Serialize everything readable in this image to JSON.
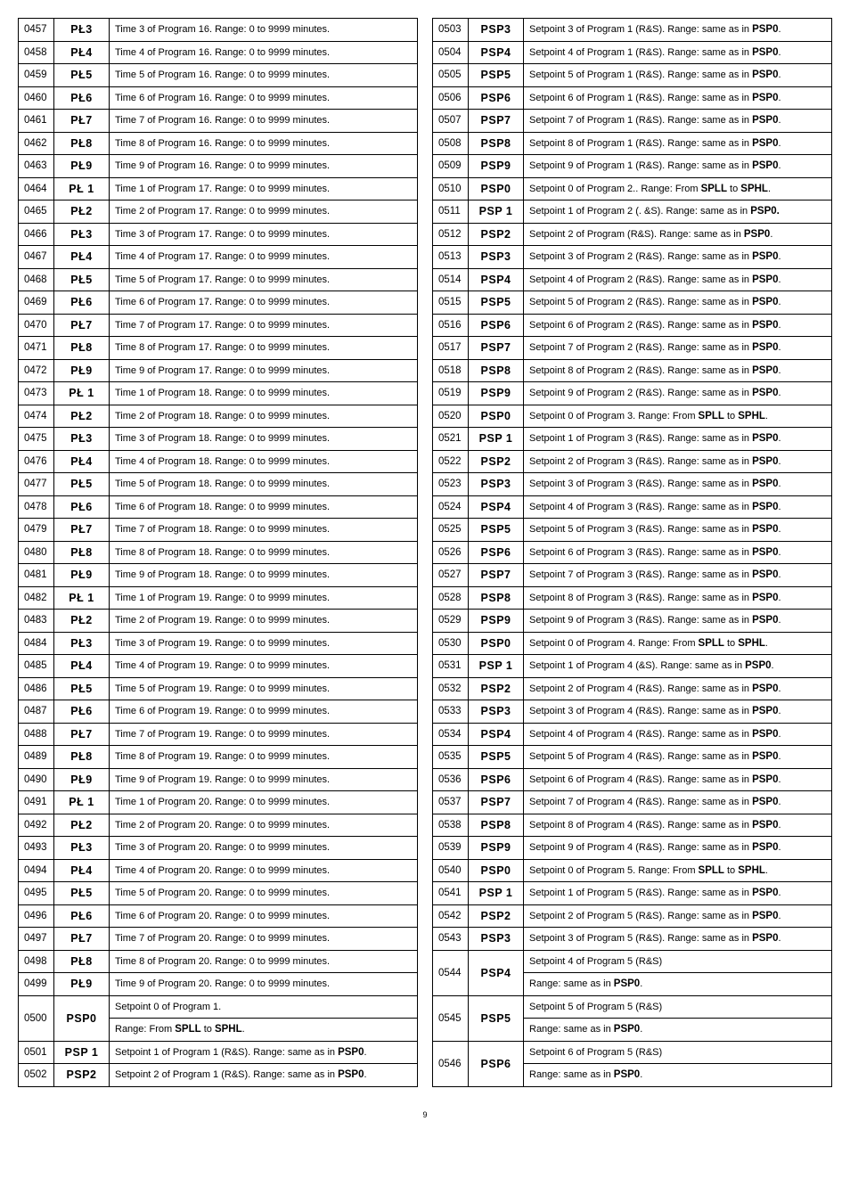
{
  "left": [
    {
      "idx": "0457",
      "code": "PŁ3",
      "desc": "Time 3 of Program 16. Range: 0 to 9999 minutes."
    },
    {
      "idx": "0458",
      "code": "PŁ4",
      "desc": "Time 4 of Program 16. Range: 0 to 9999 minutes."
    },
    {
      "idx": "0459",
      "code": "PŁ5",
      "desc": "Time 5 of Program 16. Range: 0 to 9999 minutes."
    },
    {
      "idx": "0460",
      "code": "PŁ6",
      "desc": "Time 6 of Program 16. Range: 0 to 9999 minutes."
    },
    {
      "idx": "0461",
      "code": "PŁ7",
      "desc": "Time 7 of Program 16. Range: 0 to 9999 minutes."
    },
    {
      "idx": "0462",
      "code": "PŁ8",
      "desc": "Time 8 of Program 16. Range: 0 to 9999 minutes."
    },
    {
      "idx": "0463",
      "code": "PŁ9",
      "desc": "Time 9 of Program 16. Range: 0 to 9999 minutes."
    },
    {
      "idx": "0464",
      "code": "PŁ 1",
      "desc": "Time 1 of Program 17. Range: 0 to 9999 minutes."
    },
    {
      "idx": "0465",
      "code": "PŁ2",
      "desc": "Time 2 of Program 17. Range: 0 to 9999 minutes."
    },
    {
      "idx": "0466",
      "code": "PŁ3",
      "desc": "Time 3 of Program 17. Range: 0 to 9999 minutes."
    },
    {
      "idx": "0467",
      "code": "PŁ4",
      "desc": "Time 4 of Program 17. Range: 0 to 9999 minutes."
    },
    {
      "idx": "0468",
      "code": "PŁ5",
      "desc": "Time 5 of Program 17. Range: 0 to 9999 minutes."
    },
    {
      "idx": "0469",
      "code": "PŁ6",
      "desc": "Time 6 of Program 17. Range: 0 to 9999 minutes."
    },
    {
      "idx": "0470",
      "code": "PŁ7",
      "desc": "Time 7 of Program 17. Range: 0 to 9999 minutes."
    },
    {
      "idx": "0471",
      "code": "PŁ8",
      "desc": "Time 8 of Program 17. Range: 0 to 9999 minutes."
    },
    {
      "idx": "0472",
      "code": "PŁ9",
      "desc": "Time 9 of Program 17. Range: 0 to 9999 minutes."
    },
    {
      "idx": "0473",
      "code": "PŁ 1",
      "desc": "Time 1 of Program 18. Range: 0 to 9999 minutes."
    },
    {
      "idx": "0474",
      "code": "PŁ2",
      "desc": "Time 2 of Program 18. Range: 0 to 9999 minutes."
    },
    {
      "idx": "0475",
      "code": "PŁ3",
      "desc": "Time 3 of Program 18. Range: 0 to 9999 minutes."
    },
    {
      "idx": "0476",
      "code": "PŁ4",
      "desc": "Time 4 of Program 18. Range: 0 to 9999 minutes."
    },
    {
      "idx": "0477",
      "code": "PŁ5",
      "desc": "Time 5 of Program 18. Range: 0 to 9999 minutes."
    },
    {
      "idx": "0478",
      "code": "PŁ6",
      "desc": "Time 6 of Program 18. Range: 0 to 9999 minutes."
    },
    {
      "idx": "0479",
      "code": "PŁ7",
      "desc": "Time 7 of Program 18. Range: 0 to 9999 minutes."
    },
    {
      "idx": "0480",
      "code": "PŁ8",
      "desc": "Time 8 of Program 18. Range: 0 to 9999 minutes."
    },
    {
      "idx": "0481",
      "code": "PŁ9",
      "desc": "Time 9 of Program 18. Range: 0 to 9999 minutes."
    },
    {
      "idx": "0482",
      "code": "PŁ 1",
      "desc": "Time 1 of Program 19. Range: 0 to 9999 minutes."
    },
    {
      "idx": "0483",
      "code": "PŁ2",
      "desc": "Time 2 of Program 19. Range: 0 to 9999 minutes."
    },
    {
      "idx": "0484",
      "code": "PŁ3",
      "desc": "Time 3 of Program 19. Range: 0 to 9999 minutes."
    },
    {
      "idx": "0485",
      "code": "PŁ4",
      "desc": "Time 4 of Program 19. Range: 0 to 9999 minutes."
    },
    {
      "idx": "0486",
      "code": "PŁ5",
      "desc": "Time 5 of Program 19. Range: 0 to 9999 minutes."
    },
    {
      "idx": "0487",
      "code": "PŁ6",
      "desc": "Time 6 of Program 19. Range: 0 to 9999 minutes."
    },
    {
      "idx": "0488",
      "code": "PŁ7",
      "desc": "Time 7 of Program 19. Range: 0 to 9999 minutes."
    },
    {
      "idx": "0489",
      "code": "PŁ8",
      "desc": "Time 8 of Program 19. Range: 0 to 9999 minutes."
    },
    {
      "idx": "0490",
      "code": "PŁ9",
      "desc": "Time 9 of Program 19. Range: 0 to 9999 minutes."
    },
    {
      "idx": "0491",
      "code": "PŁ 1",
      "desc": "Time 1 of Program 20. Range: 0 to 9999 minutes."
    },
    {
      "idx": "0492",
      "code": "PŁ2",
      "desc": "Time 2 of Program 20. Range: 0 to 9999 minutes."
    },
    {
      "idx": "0493",
      "code": "PŁ3",
      "desc": "Time 3 of Program 20. Range: 0 to 9999 minutes."
    },
    {
      "idx": "0494",
      "code": "PŁ4",
      "desc": "Time 4 of Program 20. Range: 0 to 9999 minutes."
    },
    {
      "idx": "0495",
      "code": "PŁ5",
      "desc": "Time 5 of Program 20. Range: 0 to 9999 minutes."
    },
    {
      "idx": "0496",
      "code": "PŁ6",
      "desc": "Time 6 of Program 20. Range: 0 to 9999 minutes."
    },
    {
      "idx": "0497",
      "code": "PŁ7",
      "desc": "Time 7 of Program 20. Range: 0 to 9999 minutes."
    },
    {
      "idx": "0498",
      "code": "PŁ8",
      "desc": "Time 8 of Program 20. Range: 0 to 9999 minutes."
    },
    {
      "idx": "0499",
      "code": "PŁ9",
      "desc": "Time 9 of Program 20. Range: 0 to 9999 minutes."
    },
    {
      "idx": "0500",
      "code": "PSP0",
      "desc": "Setpoint 0 of Program 1.",
      "desc2": "Range: From <b>SPLL</b> to <b>SPHL</b>.",
      "tall": true
    },
    {
      "idx": "0501",
      "code": "PSP 1",
      "desc": "Setpoint 1 of Program 1 (R&S). Range: same as in <b>PSP0</b>."
    },
    {
      "idx": "0502",
      "code": "PSP2",
      "desc": "Setpoint 2 of Program 1 (R&S). Range: same as in <b>PSP0</b>."
    }
  ],
  "right": [
    {
      "idx": "0503",
      "code": "PSP3",
      "desc": "Setpoint 3 of Program 1 (R&S). Range: same as in <b>PSP0</b>."
    },
    {
      "idx": "0504",
      "code": "PSP4",
      "desc": "Setpoint 4 of Program 1 (R&S). Range: same as in <b>PSP0</b>."
    },
    {
      "idx": "0505",
      "code": "PSP5",
      "desc": "Setpoint 5 of Program 1 (R&S). Range: same as in <b>PSP0</b>."
    },
    {
      "idx": "0506",
      "code": "PSP6",
      "desc": "Setpoint 6 of Program 1 (R&S). Range: same as in <b>PSP0</b>."
    },
    {
      "idx": "0507",
      "code": "PSP7",
      "desc": "Setpoint 7 of Program 1 (R&S). Range: same as in <b>PSP0</b>."
    },
    {
      "idx": "0508",
      "code": "PSP8",
      "desc": "Setpoint 8 of Program 1 (R&S). Range: same as in <b>PSP0</b>."
    },
    {
      "idx": "0509",
      "code": "PSP9",
      "desc": "Setpoint 9 of Program 1 (R&S). Range: same as in <b>PSP0</b>."
    },
    {
      "idx": "0510",
      "code": "PSP0",
      "desc": "Setpoint 0 of Program 2.. Range: From <b>SPLL</b> to <b>SPHL</b>."
    },
    {
      "idx": "0511",
      "code": "PSP 1",
      "desc": "Setpoint 1 of Program 2 (. &S). Range: same as in <b>PSP0.</b>"
    },
    {
      "idx": "0512",
      "code": "PSP2",
      "desc": "Setpoint 2 of Program  (R&S). Range: same as in <b>PSP0</b>."
    },
    {
      "idx": "0513",
      "code": "PSP3",
      "desc": "Setpoint 3 of Program 2 (R&S). Range: same as in <b>PSP0</b>."
    },
    {
      "idx": "0514",
      "code": "PSP4",
      "desc": "Setpoint 4 of Program 2 (R&S). Range: same as in <b>PSP0</b>."
    },
    {
      "idx": "0515",
      "code": "PSP5",
      "desc": "Setpoint 5 of Program 2 (R&S). Range: same as in <b>PSP0</b>."
    },
    {
      "idx": "0516",
      "code": "PSP6",
      "desc": "Setpoint 6 of Program 2 (R&S). Range: same as in <b>PSP0</b>."
    },
    {
      "idx": "0517",
      "code": "PSP7",
      "desc": "Setpoint 7 of Program 2 (R&S). Range: same as in <b>PSP0</b>."
    },
    {
      "idx": "0518",
      "code": "PSP8",
      "desc": "Setpoint 8 of Program 2 (R&S). Range: same as in <b>PSP0</b>."
    },
    {
      "idx": "0519",
      "code": "PSP9",
      "desc": "Setpoint 9 of Program 2 (R&S). Range: same as in <b>PSP0</b>."
    },
    {
      "idx": "0520",
      "code": "PSP0",
      "desc": "Setpoint 0 of Program 3. Range: From <b>SPLL</b> to <b>SPHL</b>."
    },
    {
      "idx": "0521",
      "code": "PSP 1",
      "desc": "Setpoint 1 of Program 3 (R&S). Range: same as in <b>PSP0</b>."
    },
    {
      "idx": "0522",
      "code": "PSP2",
      "desc": "Setpoint 2 of Program 3 (R&S). Range: same as in <b>PSP0</b>."
    },
    {
      "idx": "0523",
      "code": "PSP3",
      "desc": "Setpoint 3 of Program 3 (R&S). Range: same as in <b>PSP0</b>."
    },
    {
      "idx": "0524",
      "code": "PSP4",
      "desc": "Setpoint 4 of Program 3 (R&S). Range: same as in <b>PSP0</b>."
    },
    {
      "idx": "0525",
      "code": "PSP5",
      "desc": "Setpoint 5 of Program 3 (R&S). Range: same as in <b>PSP0</b>."
    },
    {
      "idx": "0526",
      "code": "PSP6",
      "desc": "Setpoint 6 of Program 3 (R&S). Range: same as in <b>PSP0</b>."
    },
    {
      "idx": "0527",
      "code": "PSP7",
      "desc": "Setpoint 7 of Program 3 (R&S). Range: same as in <b>PSP0</b>."
    },
    {
      "idx": "0528",
      "code": "PSP8",
      "desc": "Setpoint 8 of Program 3 (R&S). Range: same as in <b>PSP0</b>."
    },
    {
      "idx": "0529",
      "code": "PSP9",
      "desc": "Setpoint 9 of Program 3 (R&S). Range: same as in <b>PSP0</b>."
    },
    {
      "idx": "0530",
      "code": "PSP0",
      "desc": "Setpoint 0 of Program 4. Range: From <b>SPLL</b> to <b>SPHL</b>."
    },
    {
      "idx": "0531",
      "code": "PSP 1",
      "desc": "Setpoint 1 of Program 4 (&S). Range: same as in <b>PSP0</b>."
    },
    {
      "idx": "0532",
      "code": "PSP2",
      "desc": "Setpoint 2 of Program 4 (R&S). Range: same as in <b>PSP0</b>."
    },
    {
      "idx": "0533",
      "code": "PSP3",
      "desc": "Setpoint 3 of Program 4 (R&S). Range: same as in <b>PSP0</b>."
    },
    {
      "idx": "0534",
      "code": "PSP4",
      "desc": "Setpoint 4 of Program 4 (R&S). Range: same as in <b>PSP0</b>."
    },
    {
      "idx": "0535",
      "code": "PSP5",
      "desc": "Setpoint 5 of Program 4 (R&S). Range: same as in <b>PSP0</b>."
    },
    {
      "idx": "0536",
      "code": "PSP6",
      "desc": "Setpoint 6 of Program 4 (R&S). Range: same as in <b>PSP0</b>."
    },
    {
      "idx": "0537",
      "code": "PSP7",
      "desc": "Setpoint 7 of Program 4 (R&S). Range: same as in <b>PSP0</b>."
    },
    {
      "idx": "0538",
      "code": "PSP8",
      "desc": "Setpoint 8 of Program 4 (R&S). Range: same as in <b>PSP0</b>."
    },
    {
      "idx": "0539",
      "code": "PSP9",
      "desc": "Setpoint 9 of Program 4 (R&S). Range: same as in <b>PSP0</b>."
    },
    {
      "idx": "0540",
      "code": "PSP0",
      "desc": "Setpoint 0 of Program 5. Range: From <b>SPLL</b> to <b>SPHL</b>."
    },
    {
      "idx": "0541",
      "code": "PSP 1",
      "desc": "Setpoint 1 of Program 5 (R&S). Range: same as in <b>PSP0</b>."
    },
    {
      "idx": "0542",
      "code": "PSP2",
      "desc": "Setpoint 2 of Program 5 (R&S). Range: same as in <b>PSP0</b>."
    },
    {
      "idx": "0543",
      "code": "PSP3",
      "desc": "Setpoint 3 of Program 5 (R&S). Range: same as in <b>PSP0</b>."
    },
    {
      "idx": "0544",
      "code": "PSP4",
      "desc": "Setpoint 4 of Program 5 (R&S)",
      "desc2": "Range: same as in <b>PSP0</b>.",
      "tall": true
    },
    {
      "idx": "0545",
      "code": "PSP5",
      "desc": "Setpoint 5 of Program 5 (R&S)",
      "desc2": "Range: same as in <b>PSP0</b>.",
      "tall": true
    },
    {
      "idx": "0546",
      "code": "PSP6",
      "desc": "Setpoint 6 of Program 5 (R&S)",
      "desc2": "Range: same as in <b>PSP0</b>.",
      "tall": true
    }
  ],
  "pagenum": "9"
}
